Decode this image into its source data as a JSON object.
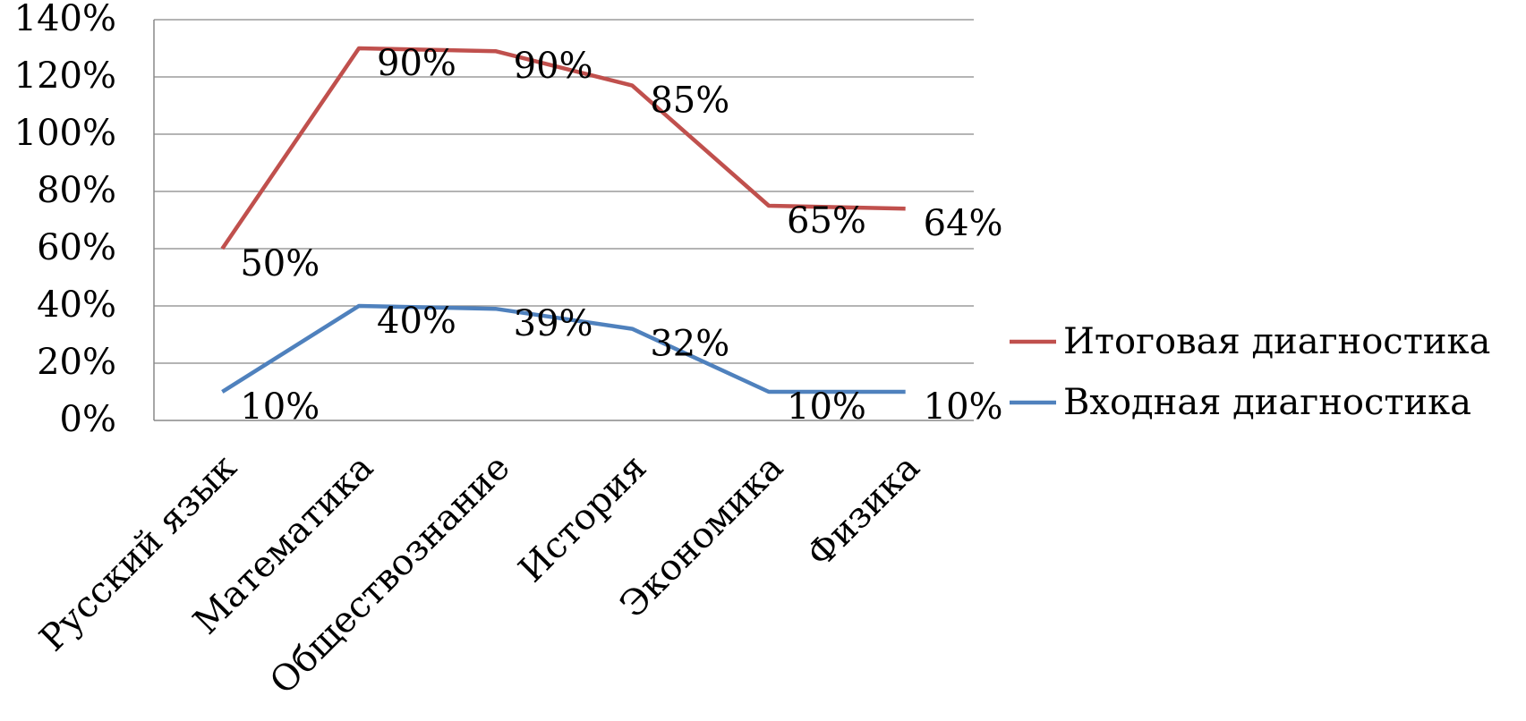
{
  "chart_data": {
    "type": "line",
    "title": "",
    "xlabel": "",
    "ylabel": "",
    "categories": [
      "Русский язык",
      "Математика",
      "Обществознание",
      "История",
      "Экономика",
      "Физика"
    ],
    "ylim": [
      0,
      140
    ],
    "yticks": [
      0,
      20,
      40,
      60,
      80,
      100,
      120,
      140
    ],
    "ytick_labels": [
      "0%",
      "20%",
      "40%",
      "60%",
      "80%",
      "100%",
      "120%",
      "140%"
    ],
    "stacked": true,
    "grid": true,
    "legend_position": "right",
    "series": [
      {
        "name": "Итоговая диагностика",
        "color": "#C0504D",
        "values": [
          50,
          90,
          90,
          85,
          65,
          64
        ],
        "plotted_values": [
          60,
          130,
          129,
          117,
          75,
          74
        ],
        "labels": [
          "50%",
          "90%",
          "90%",
          "85%",
          "65%",
          "64%"
        ]
      },
      {
        "name": "Входная диагностика",
        "color": "#4F81BD",
        "values": [
          10,
          40,
          39,
          32,
          10,
          10
        ],
        "plotted_values": [
          10,
          40,
          39,
          32,
          10,
          10
        ],
        "labels": [
          "10%",
          "40%",
          "39%",
          "32%",
          "10%",
          "10%"
        ]
      }
    ]
  }
}
